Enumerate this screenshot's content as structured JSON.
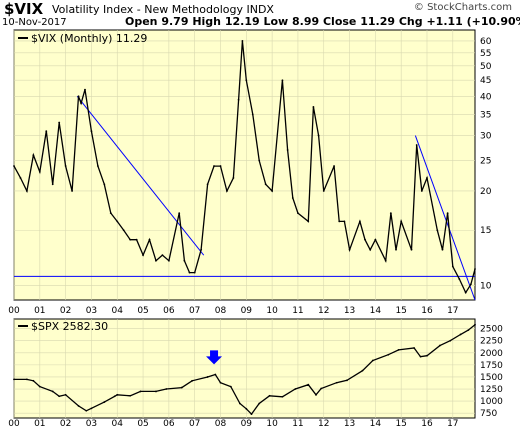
{
  "header": {
    "symbol": "$VIX",
    "description": "Volatility Index - New Methodology  INDX",
    "date": "10-Nov-2017",
    "ohlc": "Open 9.79  High 12.19  Low 8.99  Close 11.29  Chg +1.11 (+10.90%)",
    "watermark": "© StockCharts.com"
  },
  "colors": {
    "panel_bg": "#ffffcc",
    "grid": "#d8d8b0",
    "price_line": "#000000",
    "trend_line": "#0000ff",
    "arrow": "#0000ff"
  },
  "chart_data": [
    {
      "type": "line",
      "legend": "$VIX (Monthly) 11.29",
      "scale": "log",
      "ylim": [
        9,
        65
      ],
      "y_ticks": [
        10,
        15,
        20,
        25,
        30,
        35,
        40,
        45,
        50,
        55,
        60
      ],
      "x_ticks": [
        "00",
        "01",
        "02",
        "03",
        "04",
        "05",
        "06",
        "07",
        "08",
        "09",
        "10",
        "11",
        "12",
        "13",
        "14",
        "15",
        "16",
        "17"
      ],
      "x_range_years": [
        2000,
        2017.86
      ],
      "series": [
        {
          "values": [
            [
              2000.0,
              24
            ],
            [
              2000.25,
              22
            ],
            [
              2000.5,
              20
            ],
            [
              2000.75,
              26
            ],
            [
              2001.0,
              23
            ],
            [
              2001.25,
              31
            ],
            [
              2001.5,
              21
            ],
            [
              2001.75,
              33
            ],
            [
              2002.0,
              24
            ],
            [
              2002.25,
              20
            ],
            [
              2002.5,
              40
            ],
            [
              2002.6,
              38
            ],
            [
              2002.75,
              42
            ],
            [
              2003.0,
              31
            ],
            [
              2003.25,
              24
            ],
            [
              2003.5,
              21
            ],
            [
              2003.75,
              17
            ],
            [
              2004.0,
              16
            ],
            [
              2004.25,
              15
            ],
            [
              2004.5,
              14
            ],
            [
              2004.75,
              14
            ],
            [
              2005.0,
              12.5
            ],
            [
              2005.25,
              14
            ],
            [
              2005.5,
              12
            ],
            [
              2005.75,
              12.5
            ],
            [
              2006.0,
              12
            ],
            [
              2006.4,
              17
            ],
            [
              2006.6,
              12
            ],
            [
              2006.8,
              11
            ],
            [
              2007.0,
              11
            ],
            [
              2007.25,
              13
            ],
            [
              2007.5,
              21
            ],
            [
              2007.75,
              24
            ],
            [
              2008.0,
              24
            ],
            [
              2008.25,
              20
            ],
            [
              2008.5,
              22
            ],
            [
              2008.7,
              39
            ],
            [
              2008.85,
              60
            ],
            [
              2009.0,
              45
            ],
            [
              2009.25,
              35
            ],
            [
              2009.5,
              25
            ],
            [
              2009.75,
              21
            ],
            [
              2010.0,
              20
            ],
            [
              2010.4,
              45
            ],
            [
              2010.6,
              27
            ],
            [
              2010.8,
              19
            ],
            [
              2011.0,
              17
            ],
            [
              2011.4,
              16
            ],
            [
              2011.6,
              37
            ],
            [
              2011.8,
              30
            ],
            [
              2012.0,
              20
            ],
            [
              2012.4,
              24
            ],
            [
              2012.6,
              16
            ],
            [
              2012.8,
              16
            ],
            [
              2013.0,
              13
            ],
            [
              2013.4,
              16
            ],
            [
              2013.6,
              14
            ],
            [
              2013.8,
              13
            ],
            [
              2014.0,
              14
            ],
            [
              2014.4,
              12
            ],
            [
              2014.6,
              17
            ],
            [
              2014.8,
              13
            ],
            [
              2015.0,
              16
            ],
            [
              2015.4,
              13
            ],
            [
              2015.6,
              28
            ],
            [
              2015.8,
              20
            ],
            [
              2016.0,
              22
            ],
            [
              2016.4,
              15
            ],
            [
              2016.6,
              13
            ],
            [
              2016.8,
              17
            ],
            [
              2017.0,
              11.5
            ],
            [
              2017.25,
              10.5
            ],
            [
              2017.5,
              9.5
            ],
            [
              2017.7,
              10.1
            ],
            [
              2017.86,
              11.29
            ]
          ]
        }
      ],
      "trendlines": [
        [
          [
            2002.45,
            40
          ],
          [
            2007.35,
            12.5
          ]
        ],
        [
          [
            2015.55,
            30
          ],
          [
            2017.86,
            9
          ]
        ]
      ],
      "hline": 10.7
    },
    {
      "type": "line",
      "legend": "$SPX 2582.30",
      "ylim": [
        650,
        2700
      ],
      "y_ticks": [
        750,
        1000,
        1250,
        1500,
        1750,
        2000,
        2250,
        2500
      ],
      "x_ticks": [
        "00",
        "01",
        "02",
        "03",
        "04",
        "05",
        "06",
        "07",
        "08",
        "09",
        "10",
        "11",
        "12",
        "13",
        "14",
        "15",
        "16",
        "17"
      ],
      "series": [
        {
          "values": [
            [
              2000.0,
              1450
            ],
            [
              2000.5,
              1450
            ],
            [
              2000.75,
              1420
            ],
            [
              2001.0,
              1300
            ],
            [
              2001.5,
              1200
            ],
            [
              2001.75,
              1100
            ],
            [
              2002.0,
              1130
            ],
            [
              2002.5,
              900
            ],
            [
              2002.8,
              800
            ],
            [
              2003.0,
              850
            ],
            [
              2003.5,
              980
            ],
            [
              2003.9,
              1100
            ],
            [
              2004.0,
              1130
            ],
            [
              2004.5,
              1110
            ],
            [
              2004.9,
              1200
            ],
            [
              2005.5,
              1200
            ],
            [
              2005.9,
              1250
            ],
            [
              2006.5,
              1280
            ],
            [
              2006.9,
              1420
            ],
            [
              2007.5,
              1500
            ],
            [
              2007.8,
              1550
            ],
            [
              2008.0,
              1380
            ],
            [
              2008.4,
              1300
            ],
            [
              2008.75,
              950
            ],
            [
              2009.0,
              840
            ],
            [
              2009.2,
              730
            ],
            [
              2009.5,
              950
            ],
            [
              2009.9,
              1110
            ],
            [
              2010.4,
              1090
            ],
            [
              2010.9,
              1250
            ],
            [
              2011.4,
              1340
            ],
            [
              2011.7,
              1130
            ],
            [
              2011.9,
              1260
            ],
            [
              2012.5,
              1380
            ],
            [
              2012.9,
              1430
            ],
            [
              2013.5,
              1630
            ],
            [
              2013.9,
              1840
            ],
            [
              2014.5,
              1960
            ],
            [
              2014.9,
              2060
            ],
            [
              2015.5,
              2100
            ],
            [
              2015.75,
              1920
            ],
            [
              2016.0,
              1940
            ],
            [
              2016.5,
              2150
            ],
            [
              2016.9,
              2250
            ],
            [
              2017.3,
              2380
            ],
            [
              2017.6,
              2470
            ],
            [
              2017.86,
              2582
            ]
          ]
        }
      ],
      "marker": {
        "x": 2007.75,
        "label": "peak"
      }
    }
  ]
}
